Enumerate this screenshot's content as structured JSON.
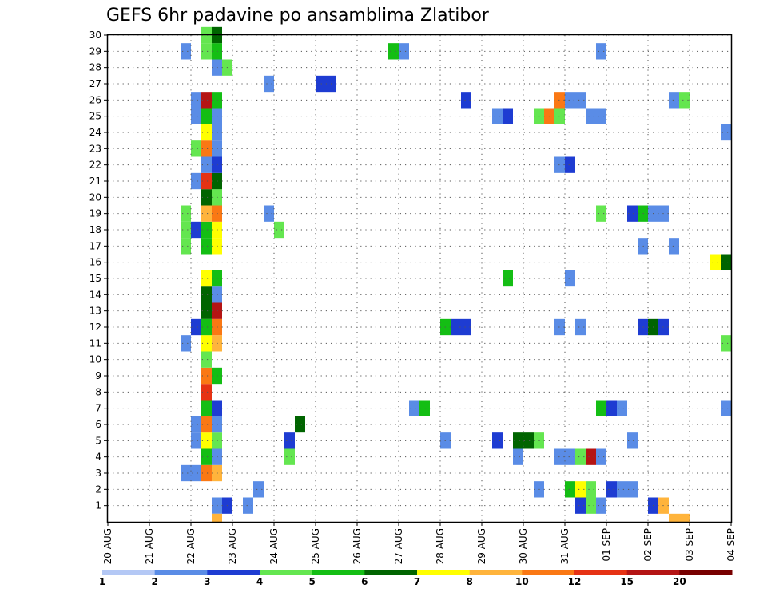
{
  "chart_data": {
    "type": "heatmap",
    "title": "GEFS 6hr padavine po ansamblima Zlatibor",
    "xlabel": "",
    "ylabel": "",
    "x_tick_labels": [
      "20 AUG",
      "21 AUG",
      "22 AUG",
      "23 AUG",
      "24 AUG",
      "25 AUG",
      "26 AUG",
      "27 AUG",
      "28 AUG",
      "29 AUG",
      "30 AUG",
      "31 AUG",
      "01 SEP",
      "02 SEP",
      "03 SEP",
      "04 SEP"
    ],
    "x_range_days": [
      0,
      15
    ],
    "y_tick_labels": [
      "1",
      "2",
      "3",
      "4",
      "5",
      "6",
      "7",
      "8",
      "9",
      "10",
      "11",
      "12",
      "13",
      "14",
      "15",
      "16",
      "17",
      "18",
      "19",
      "20",
      "21",
      "22",
      "23",
      "24",
      "25",
      "26",
      "27",
      "28",
      "29",
      "30"
    ],
    "y_range": [
      0,
      30
    ],
    "grid": true,
    "legend_placement": "bottom",
    "legend": {
      "thresholds": [
        "1",
        "2",
        "3",
        "4",
        "5",
        "6",
        "7",
        "8",
        "10",
        "12",
        "15",
        "20"
      ],
      "colors": [
        "#b4c8f5",
        "#5a8ce6",
        "#1e3cd2",
        "#64e650",
        "#14be14",
        "#006400",
        "#ffff00",
        "#ffb43c",
        "#fa7814",
        "#e63214",
        "#b41414",
        "#780000"
      ]
    },
    "cells": [
      {
        "d": 2.5,
        "m": 1,
        "l": 1
      },
      {
        "d": 2.75,
        "m": 1,
        "l": 2
      },
      {
        "d": 3.25,
        "m": 1,
        "l": 1
      },
      {
        "d": 11.25,
        "m": 1,
        "l": 2
      },
      {
        "d": 11.5,
        "m": 1,
        "l": 3
      },
      {
        "d": 11.75,
        "m": 1,
        "l": 1
      },
      {
        "d": 13.0,
        "m": 1,
        "l": 2
      },
      {
        "d": 13.25,
        "m": 1,
        "l": 7
      },
      {
        "d": 2.5,
        "m": 0,
        "l": 7
      },
      {
        "d": 13.5,
        "m": 0,
        "l": 7
      },
      {
        "d": 13.75,
        "m": 0,
        "l": 7
      },
      {
        "d": 3.5,
        "m": 2,
        "l": 1
      },
      {
        "d": 10.25,
        "m": 2,
        "l": 1
      },
      {
        "d": 11.0,
        "m": 2,
        "l": 4
      },
      {
        "d": 11.25,
        "m": 2,
        "l": 6
      },
      {
        "d": 11.5,
        "m": 2,
        "l": 3
      },
      {
        "d": 12.0,
        "m": 2,
        "l": 2
      },
      {
        "d": 12.25,
        "m": 2,
        "l": 1
      },
      {
        "d": 12.5,
        "m": 2,
        "l": 1
      },
      {
        "d": 1.75,
        "m": 3,
        "l": 1
      },
      {
        "d": 2.0,
        "m": 3,
        "l": 1
      },
      {
        "d": 2.25,
        "m": 3,
        "l": 8
      },
      {
        "d": 2.5,
        "m": 3,
        "l": 7
      },
      {
        "d": 2.25,
        "m": 4,
        "l": 4
      },
      {
        "d": 2.5,
        "m": 4,
        "l": 1
      },
      {
        "d": 4.25,
        "m": 4,
        "l": 3
      },
      {
        "d": 9.75,
        "m": 4,
        "l": 1
      },
      {
        "d": 10.75,
        "m": 4,
        "l": 1
      },
      {
        "d": 11.0,
        "m": 4,
        "l": 1
      },
      {
        "d": 11.25,
        "m": 4,
        "l": 3
      },
      {
        "d": 11.5,
        "m": 4,
        "l": 10
      },
      {
        "d": 11.75,
        "m": 4,
        "l": 1
      },
      {
        "d": 2.0,
        "m": 5,
        "l": 1
      },
      {
        "d": 2.25,
        "m": 5,
        "l": 6
      },
      {
        "d": 2.5,
        "m": 5,
        "l": 3
      },
      {
        "d": 4.25,
        "m": 5,
        "l": 2
      },
      {
        "d": 8.0,
        "m": 5,
        "l": 1
      },
      {
        "d": 9.25,
        "m": 5,
        "l": 2
      },
      {
        "d": 9.75,
        "m": 5,
        "l": 5
      },
      {
        "d": 10.0,
        "m": 5,
        "l": 5
      },
      {
        "d": 10.25,
        "m": 5,
        "l": 3
      },
      {
        "d": 12.5,
        "m": 5,
        "l": 1
      },
      {
        "d": 2.0,
        "m": 6,
        "l": 1
      },
      {
        "d": 2.25,
        "m": 6,
        "l": 8
      },
      {
        "d": 2.5,
        "m": 6,
        "l": 1
      },
      {
        "d": 4.5,
        "m": 6,
        "l": 5
      },
      {
        "d": 2.25,
        "m": 7,
        "l": 4
      },
      {
        "d": 2.5,
        "m": 7,
        "l": 2
      },
      {
        "d": 7.25,
        "m": 7,
        "l": 1
      },
      {
        "d": 7.5,
        "m": 7,
        "l": 4
      },
      {
        "d": 11.75,
        "m": 7,
        "l": 4
      },
      {
        "d": 12.0,
        "m": 7,
        "l": 2
      },
      {
        "d": 12.25,
        "m": 7,
        "l": 1
      },
      {
        "d": 14.75,
        "m": 7,
        "l": 1
      },
      {
        "d": 2.25,
        "m": 8,
        "l": 9
      },
      {
        "d": 2.25,
        "m": 9,
        "l": 8
      },
      {
        "d": 2.5,
        "m": 9,
        "l": 4
      },
      {
        "d": 2.25,
        "m": 10,
        "l": 3
      },
      {
        "d": 1.75,
        "m": 11,
        "l": 1
      },
      {
        "d": 2.25,
        "m": 11,
        "l": 6
      },
      {
        "d": 2.5,
        "m": 11,
        "l": 7
      },
      {
        "d": 14.75,
        "m": 11,
        "l": 3
      },
      {
        "d": 2.0,
        "m": 12,
        "l": 2
      },
      {
        "d": 2.25,
        "m": 12,
        "l": 4
      },
      {
        "d": 2.5,
        "m": 12,
        "l": 8
      },
      {
        "d": 8.0,
        "m": 12,
        "l": 4
      },
      {
        "d": 8.25,
        "m": 12,
        "l": 2
      },
      {
        "d": 8.5,
        "m": 12,
        "l": 2
      },
      {
        "d": 10.75,
        "m": 12,
        "l": 1
      },
      {
        "d": 11.25,
        "m": 12,
        "l": 1
      },
      {
        "d": 12.75,
        "m": 12,
        "l": 2
      },
      {
        "d": 13.0,
        "m": 12,
        "l": 5
      },
      {
        "d": 13.25,
        "m": 12,
        "l": 2
      },
      {
        "d": 2.25,
        "m": 13,
        "l": 5
      },
      {
        "d": 2.5,
        "m": 13,
        "l": 10
      },
      {
        "d": 2.25,
        "m": 14,
        "l": 5
      },
      {
        "d": 2.5,
        "m": 14,
        "l": 1
      },
      {
        "d": 2.25,
        "m": 15,
        "l": 6
      },
      {
        "d": 2.5,
        "m": 15,
        "l": 4
      },
      {
        "d": 9.5,
        "m": 15,
        "l": 4
      },
      {
        "d": 11.0,
        "m": 15,
        "l": 1
      },
      {
        "d": 14.5,
        "m": 16,
        "l": 6
      },
      {
        "d": 14.75,
        "m": 16,
        "l": 5
      },
      {
        "d": 1.75,
        "m": 17,
        "l": 3
      },
      {
        "d": 2.25,
        "m": 17,
        "l": 4
      },
      {
        "d": 2.5,
        "m": 17,
        "l": 6
      },
      {
        "d": 12.75,
        "m": 17,
        "l": 1
      },
      {
        "d": 13.5,
        "m": 17,
        "l": 1
      },
      {
        "d": 1.75,
        "m": 18,
        "l": 3
      },
      {
        "d": 2.0,
        "m": 18,
        "l": 2
      },
      {
        "d": 2.25,
        "m": 18,
        "l": 4
      },
      {
        "d": 2.5,
        "m": 18,
        "l": 6
      },
      {
        "d": 4.0,
        "m": 18,
        "l": 3
      },
      {
        "d": 1.75,
        "m": 19,
        "l": 3
      },
      {
        "d": 2.25,
        "m": 19,
        "l": 7
      },
      {
        "d": 2.5,
        "m": 19,
        "l": 8
      },
      {
        "d": 3.75,
        "m": 19,
        "l": 1
      },
      {
        "d": 11.75,
        "m": 19,
        "l": 3
      },
      {
        "d": 12.5,
        "m": 19,
        "l": 2
      },
      {
        "d": 12.75,
        "m": 19,
        "l": 4
      },
      {
        "d": 13.0,
        "m": 19,
        "l": 1
      },
      {
        "d": 13.25,
        "m": 19,
        "l": 1
      },
      {
        "d": 2.25,
        "m": 20,
        "l": 5
      },
      {
        "d": 2.5,
        "m": 20,
        "l": 3
      },
      {
        "d": 2.0,
        "m": 21,
        "l": 1
      },
      {
        "d": 2.25,
        "m": 21,
        "l": 9
      },
      {
        "d": 2.5,
        "m": 21,
        "l": 5
      },
      {
        "d": 2.25,
        "m": 22,
        "l": 1
      },
      {
        "d": 2.5,
        "m": 22,
        "l": 2
      },
      {
        "d": 10.75,
        "m": 22,
        "l": 1
      },
      {
        "d": 11.0,
        "m": 22,
        "l": 2
      },
      {
        "d": 2.0,
        "m": 23,
        "l": 3
      },
      {
        "d": 2.25,
        "m": 23,
        "l": 8
      },
      {
        "d": 2.5,
        "m": 23,
        "l": 1
      },
      {
        "d": 2.25,
        "m": 24,
        "l": 6
      },
      {
        "d": 2.5,
        "m": 24,
        "l": 1
      },
      {
        "d": 14.75,
        "m": 24,
        "l": 1
      },
      {
        "d": 2.0,
        "m": 25,
        "l": 1
      },
      {
        "d": 2.25,
        "m": 25,
        "l": 4
      },
      {
        "d": 2.5,
        "m": 25,
        "l": 1
      },
      {
        "d": 9.25,
        "m": 25,
        "l": 1
      },
      {
        "d": 9.5,
        "m": 25,
        "l": 2
      },
      {
        "d": 10.25,
        "m": 25,
        "l": 3
      },
      {
        "d": 10.5,
        "m": 25,
        "l": 8
      },
      {
        "d": 10.75,
        "m": 25,
        "l": 3
      },
      {
        "d": 11.5,
        "m": 25,
        "l": 1
      },
      {
        "d": 11.75,
        "m": 25,
        "l": 1
      },
      {
        "d": 2.0,
        "m": 26,
        "l": 1
      },
      {
        "d": 2.25,
        "m": 26,
        "l": 10
      },
      {
        "d": 2.5,
        "m": 26,
        "l": 4
      },
      {
        "d": 8.5,
        "m": 26,
        "l": 2
      },
      {
        "d": 10.75,
        "m": 26,
        "l": 8
      },
      {
        "d": 11.0,
        "m": 26,
        "l": 1
      },
      {
        "d": 11.25,
        "m": 26,
        "l": 1
      },
      {
        "d": 13.5,
        "m": 26,
        "l": 1
      },
      {
        "d": 13.75,
        "m": 26,
        "l": 3
      },
      {
        "d": 3.75,
        "m": 27,
        "l": 1
      },
      {
        "d": 5.0,
        "m": 27,
        "l": 2
      },
      {
        "d": 5.25,
        "m": 27,
        "l": 2
      },
      {
        "d": 2.5,
        "m": 28,
        "l": 1
      },
      {
        "d": 2.75,
        "m": 28,
        "l": 3
      },
      {
        "d": 1.75,
        "m": 29,
        "l": 1
      },
      {
        "d": 2.25,
        "m": 29,
        "l": 3
      },
      {
        "d": 2.5,
        "m": 29,
        "l": 4
      },
      {
        "d": 6.75,
        "m": 29,
        "l": 4
      },
      {
        "d": 7.0,
        "m": 29,
        "l": 1
      },
      {
        "d": 11.75,
        "m": 29,
        "l": 1
      },
      {
        "d": 2.25,
        "m": 30,
        "l": 3
      },
      {
        "d": 2.5,
        "m": 30,
        "l": 5
      }
    ]
  }
}
